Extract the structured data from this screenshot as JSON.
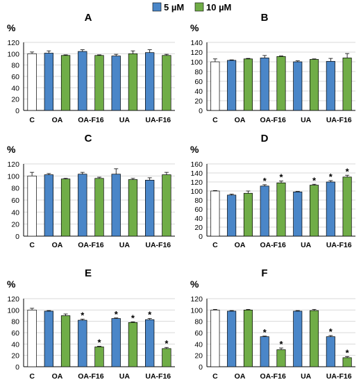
{
  "legend": {
    "items": [
      {
        "label": "5 µM",
        "color": "#4a86c8"
      },
      {
        "label": "10 µM",
        "color": "#70ad47"
      }
    ]
  },
  "colors": {
    "control": "#ffffff",
    "stroke": "#000000",
    "grid": "#d9d9d9"
  },
  "chart_data": [
    {
      "panel": "A",
      "type": "bar",
      "ylabel": "%",
      "ylim": [
        0,
        120
      ],
      "yticks": [
        0,
        20,
        40,
        60,
        80,
        100,
        120
      ],
      "categories": [
        "C",
        "OA",
        "OA-F16",
        "UA",
        "UA-F16"
      ],
      "bars": [
        {
          "group": "C",
          "series": "control",
          "value": 100,
          "error": 3,
          "star": false
        },
        {
          "group": "OA",
          "series": "5 µM",
          "value": 101,
          "error": 4,
          "star": false
        },
        {
          "group": "OA",
          "series": "10 µM",
          "value": 97,
          "error": 1,
          "star": false
        },
        {
          "group": "OA-F16",
          "series": "5 µM",
          "value": 104,
          "error": 3,
          "star": false
        },
        {
          "group": "OA-F16",
          "series": "10 µM",
          "value": 97,
          "error": 1,
          "star": false
        },
        {
          "group": "UA",
          "series": "5 µM",
          "value": 96,
          "error": 3,
          "star": false
        },
        {
          "group": "UA",
          "series": "10 µM",
          "value": 100,
          "error": 5,
          "star": false
        },
        {
          "group": "UA-F16",
          "series": "5 µM",
          "value": 102,
          "error": 5,
          "star": false
        },
        {
          "group": "UA-F16",
          "series": "10 µM",
          "value": 97,
          "error": 2,
          "star": false
        }
      ]
    },
    {
      "panel": "B",
      "type": "bar",
      "ylabel": "%",
      "ylim": [
        0,
        140
      ],
      "yticks": [
        0,
        20,
        40,
        60,
        80,
        100,
        120,
        140
      ],
      "categories": [
        "C",
        "OA",
        "OA-F16",
        "UA",
        "UA-F16"
      ],
      "bars": [
        {
          "group": "C",
          "series": "control",
          "value": 100,
          "error": 6,
          "star": false
        },
        {
          "group": "OA",
          "series": "5 µM",
          "value": 103,
          "error": 1,
          "star": false
        },
        {
          "group": "OA",
          "series": "10 µM",
          "value": 106,
          "error": 1,
          "star": false
        },
        {
          "group": "OA-F16",
          "series": "5 µM",
          "value": 108,
          "error": 5,
          "star": false
        },
        {
          "group": "OA-F16",
          "series": "10 µM",
          "value": 111,
          "error": 1,
          "star": false
        },
        {
          "group": "UA",
          "series": "5 µM",
          "value": 100,
          "error": 2,
          "star": false
        },
        {
          "group": "UA",
          "series": "10 µM",
          "value": 105,
          "error": 1,
          "star": false
        },
        {
          "group": "UA-F16",
          "series": "5 µM",
          "value": 101,
          "error": 6,
          "star": false
        },
        {
          "group": "UA-F16",
          "series": "10 µM",
          "value": 108,
          "error": 9,
          "star": false
        }
      ]
    },
    {
      "panel": "C",
      "type": "bar",
      "ylabel": "%",
      "ylim": [
        0,
        120
      ],
      "yticks": [
        0,
        20,
        40,
        60,
        80,
        100,
        120
      ],
      "categories": [
        "C",
        "OA",
        "OA-F16",
        "UA",
        "UA-F16"
      ],
      "bars": [
        {
          "group": "C",
          "series": "control",
          "value": 100,
          "error": 6,
          "star": false
        },
        {
          "group": "OA",
          "series": "5 µM",
          "value": 102,
          "error": 2,
          "star": false
        },
        {
          "group": "OA",
          "series": "10 µM",
          "value": 95,
          "error": 1,
          "star": false
        },
        {
          "group": "OA-F16",
          "series": "5 µM",
          "value": 103,
          "error": 3,
          "star": false
        },
        {
          "group": "OA-F16",
          "series": "10 µM",
          "value": 96,
          "error": 2,
          "star": false
        },
        {
          "group": "UA",
          "series": "5 µM",
          "value": 103,
          "error": 9,
          "star": false
        },
        {
          "group": "UA",
          "series": "10 µM",
          "value": 94,
          "error": 2,
          "star": false
        },
        {
          "group": "UA-F16",
          "series": "5 µM",
          "value": 93,
          "error": 4,
          "star": false
        },
        {
          "group": "UA-F16",
          "series": "10 µM",
          "value": 102,
          "error": 4,
          "star": false
        }
      ]
    },
    {
      "panel": "D",
      "type": "bar",
      "ylabel": "%",
      "ylim": [
        0,
        160
      ],
      "yticks": [
        0,
        20,
        40,
        60,
        80,
        100,
        120,
        140,
        160
      ],
      "categories": [
        "C",
        "OA",
        "OA-F16",
        "UA",
        "UA-F16"
      ],
      "bars": [
        {
          "group": "C",
          "series": "control",
          "value": 100,
          "error": 1,
          "star": false
        },
        {
          "group": "OA",
          "series": "5 µM",
          "value": 91,
          "error": 2,
          "star": false
        },
        {
          "group": "OA",
          "series": "10 µM",
          "value": 95,
          "error": 5,
          "star": false
        },
        {
          "group": "OA-F16",
          "series": "5 µM",
          "value": 111,
          "error": 3,
          "star": true
        },
        {
          "group": "OA-F16",
          "series": "10 µM",
          "value": 118,
          "error": 4,
          "star": true
        },
        {
          "group": "UA",
          "series": "5 µM",
          "value": 98,
          "error": 1,
          "star": false
        },
        {
          "group": "UA",
          "series": "10 µM",
          "value": 113,
          "error": 2,
          "star": true
        },
        {
          "group": "UA-F16",
          "series": "5 µM",
          "value": 120,
          "error": 3,
          "star": true
        },
        {
          "group": "UA-F16",
          "series": "10 µM",
          "value": 131,
          "error": 4,
          "star": true
        }
      ]
    },
    {
      "panel": "E",
      "type": "bar",
      "ylabel": "%",
      "ylim": [
        0,
        120
      ],
      "yticks": [
        0,
        20,
        40,
        60,
        80,
        100,
        120
      ],
      "categories": [
        "C",
        "OA",
        "OA-F16",
        "UA",
        "UA-F16"
      ],
      "bars": [
        {
          "group": "C",
          "series": "control",
          "value": 100,
          "error": 3,
          "star": false
        },
        {
          "group": "OA",
          "series": "5 µM",
          "value": 98,
          "error": 1,
          "star": false
        },
        {
          "group": "OA",
          "series": "10 µM",
          "value": 90,
          "error": 3,
          "star": false
        },
        {
          "group": "OA-F16",
          "series": "5 µM",
          "value": 82,
          "error": 2,
          "star": true
        },
        {
          "group": "OA-F16",
          "series": "10 µM",
          "value": 35,
          "error": 1,
          "star": true
        },
        {
          "group": "UA",
          "series": "5 µM",
          "value": 85,
          "error": 1,
          "star": true
        },
        {
          "group": "UA",
          "series": "10 µM",
          "value": 78,
          "error": 1,
          "star": true
        },
        {
          "group": "UA-F16",
          "series": "5 µM",
          "value": 83,
          "error": 2,
          "star": true
        },
        {
          "group": "UA-F16",
          "series": "10 µM",
          "value": 32,
          "error": 2,
          "star": true
        }
      ]
    },
    {
      "panel": "F",
      "type": "bar",
      "ylabel": "%",
      "ylim": [
        0,
        120
      ],
      "yticks": [
        0,
        20,
        40,
        60,
        80,
        100,
        120
      ],
      "categories": [
        "C",
        "OA",
        "OA-F16",
        "UA",
        "UA-F16"
      ],
      "bars": [
        {
          "group": "C",
          "series": "control",
          "value": 100,
          "error": 1,
          "star": false
        },
        {
          "group": "OA",
          "series": "5 µM",
          "value": 98,
          "error": 1,
          "star": false
        },
        {
          "group": "OA",
          "series": "10 µM",
          "value": 100,
          "error": 1,
          "star": false
        },
        {
          "group": "OA-F16",
          "series": "5 µM",
          "value": 53,
          "error": 1,
          "star": true
        },
        {
          "group": "OA-F16",
          "series": "10 µM",
          "value": 30,
          "error": 3,
          "star": true
        },
        {
          "group": "UA",
          "series": "5 µM",
          "value": 98,
          "error": 1,
          "star": false
        },
        {
          "group": "UA",
          "series": "10 µM",
          "value": 99,
          "error": 2,
          "star": false
        },
        {
          "group": "UA-F16",
          "series": "5 µM",
          "value": 53,
          "error": 2,
          "star": true
        },
        {
          "group": "UA-F16",
          "series": "10 µM",
          "value": 16,
          "error": 2,
          "star": true
        }
      ]
    }
  ]
}
